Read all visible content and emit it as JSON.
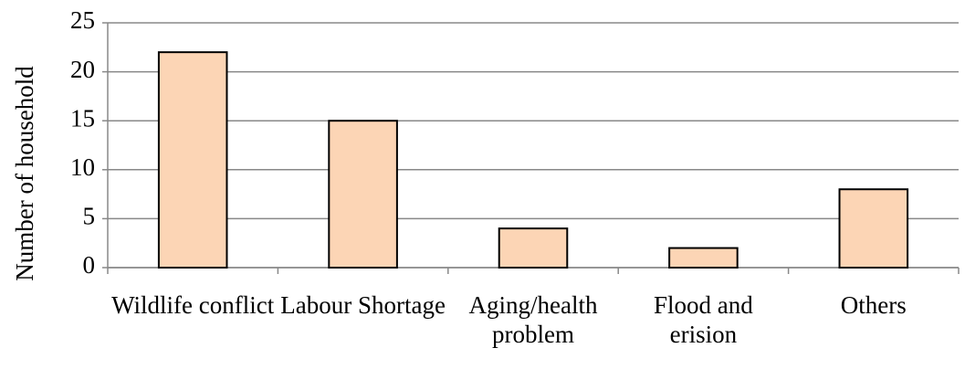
{
  "chart_data": {
    "type": "bar",
    "y_label": "Number of household",
    "categories": [
      "Wildlife conflict",
      "Labour Shortage",
      "Aging/health problem",
      "Flood and erision",
      "Others"
    ],
    "values": [
      22,
      15,
      4,
      2,
      8
    ],
    "color": "#fcd5b5",
    "ylim": [
      0,
      25
    ],
    "yticks": [
      0,
      5,
      10,
      15,
      20,
      25
    ],
    "grid": true
  }
}
